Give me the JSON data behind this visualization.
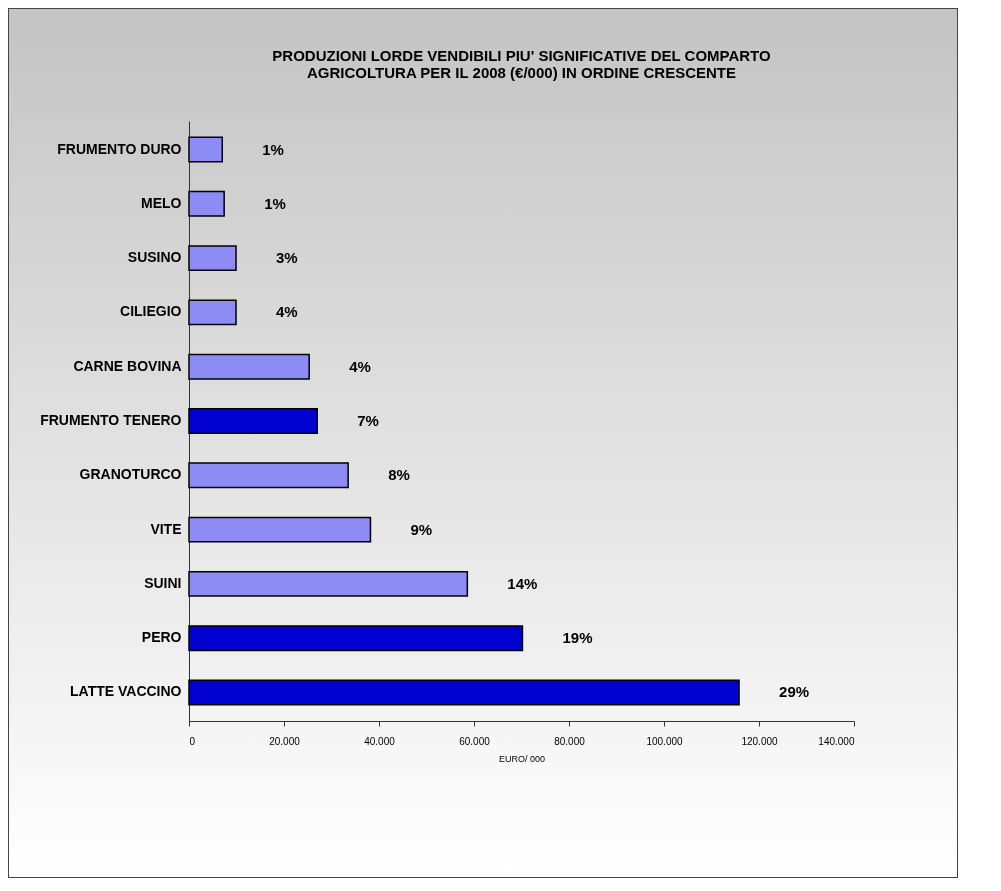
{
  "chart_data": {
    "type": "bar",
    "orientation": "horizontal",
    "title": [
      "PRODUZIONI LORDE VENDIBILI PIU' SIGNIFICATIVE DEL  COMPARTO",
      "AGRICOLTURA PER IL 2008 (€/000) IN ORDINE CRESCENTE"
    ],
    "xlabel": "EURO/ 000",
    "categories": [
      "FRUMENTO DURO",
      "MELO",
      "SUSINO",
      "CILIEGIO",
      "CARNE BOVINA",
      "FRUMENTO TENERO",
      "GRANOTURCO",
      "VITE",
      "SUINI",
      "PERO",
      "LATTE VACCINO"
    ],
    "values": [
      7000,
      7400,
      9900,
      9900,
      25300,
      27000,
      33500,
      38200,
      58600,
      70200,
      115800
    ],
    "annotations": [
      {
        "text": "1%",
        "x": 7000,
        "y": "FRUMENTO DURO"
      },
      {
        "text": "1%",
        "x": 7400,
        "y": "MELO"
      },
      {
        "text": "3%",
        "x": 9900,
        "y": "SUSINO"
      },
      {
        "text": "4%",
        "x": 9900,
        "y": "CILIEGIO"
      },
      {
        "text": "4%",
        "x": 25300,
        "y": "CARNE BOVINA"
      },
      {
        "text": "7%",
        "x": 27000,
        "y": "FRUMENTO TENERO"
      },
      {
        "text": "8%",
        "x": 33500,
        "y": "GRANOTURCO"
      },
      {
        "text": "9%",
        "x": 38200,
        "y": "VITE"
      },
      {
        "text": "14%",
        "x": 58600,
        "y": "SUINI"
      },
      {
        "text": "19%",
        "x": 70200,
        "y": "PERO"
      },
      {
        "text": "29%",
        "x": 115800,
        "y": "LATTE VACCINO"
      }
    ],
    "colors": [
      "#8c8cf4",
      "#8c8cf4",
      "#8c8cf4",
      "#8c8cf4",
      "#8c8cf4",
      "#0000d0",
      "#8c8cf4",
      "#8c8cf4",
      "#8c8cf4",
      "#0000d0",
      "#0000d0"
    ],
    "xlim": [
      0,
      140000
    ],
    "xticks": [
      {
        "value": 0,
        "label": "0"
      },
      {
        "value": 20000,
        "label": "20.000"
      },
      {
        "value": 40000,
        "label": "40.000"
      },
      {
        "value": 60000,
        "label": "60.000"
      },
      {
        "value": 80000,
        "label": "80.000"
      },
      {
        "value": 100000,
        "label": "100.000"
      },
      {
        "value": 120000,
        "label": "120.000"
      },
      {
        "value": 140000,
        "label": "140.000"
      }
    ],
    "grid": false
  }
}
